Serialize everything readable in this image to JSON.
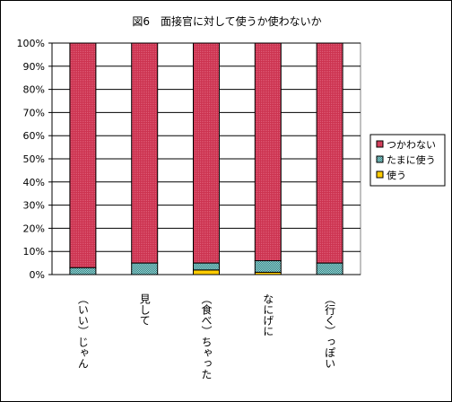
{
  "chart_data": {
    "type": "bar",
    "stacked": true,
    "percent": true,
    "title": "図6　面接官に対して使うか使わないか",
    "categories": [
      "（いい）じゃん",
      "見して",
      "（食べ）ちゃった",
      "なにげに",
      "（行く）っぽい"
    ],
    "series": [
      {
        "name": "使う",
        "color": "#ffcc00",
        "values": [
          0,
          0,
          2,
          1,
          0
        ]
      },
      {
        "name": "たまに使う",
        "color": "#4fa2a0",
        "values": [
          3,
          5,
          3,
          5,
          5
        ]
      },
      {
        "name": "つかわない",
        "color": "#cc3350",
        "values": [
          97,
          95,
          95,
          94,
          95
        ]
      }
    ],
    "y_ticks": [
      "0%",
      "10%",
      "20%",
      "30%",
      "40%",
      "50%",
      "60%",
      "70%",
      "80%",
      "90%",
      "100%"
    ],
    "ylim": [
      0,
      100
    ],
    "legend_position": "right",
    "plot_background": "#ffffff"
  }
}
